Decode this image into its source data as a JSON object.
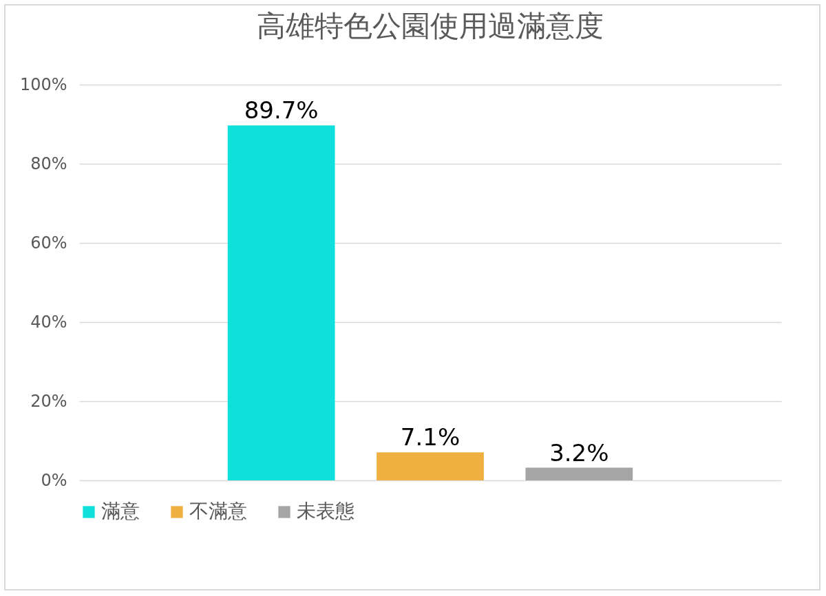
{
  "chart_data": {
    "type": "bar",
    "title": "高雄特色公園使用過滿意度",
    "categories": [
      null
    ],
    "series": [
      {
        "name": "滿意",
        "color": "#0fe0dc",
        "values": [
          89.7
        ],
        "value_labels": [
          "89.7%"
        ]
      },
      {
        "name": "不滿意",
        "color": "#f0b041",
        "values": [
          7.1
        ],
        "value_labels": [
          "7.1%"
        ]
      },
      {
        "name": "未表態",
        "color": "#a5a5a5",
        "values": [
          3.2
        ],
        "value_labels": [
          "3.2%"
        ]
      }
    ],
    "ylim": [
      0,
      100
    ],
    "yticks": [
      {
        "value": 0,
        "label": "0%"
      },
      {
        "value": 20,
        "label": "20%"
      },
      {
        "value": 40,
        "label": "40%"
      },
      {
        "value": 60,
        "label": "60%"
      },
      {
        "value": 80,
        "label": "80%"
      },
      {
        "value": 100,
        "label": "100%"
      }
    ],
    "grid": "y",
    "legend": "bottom"
  }
}
